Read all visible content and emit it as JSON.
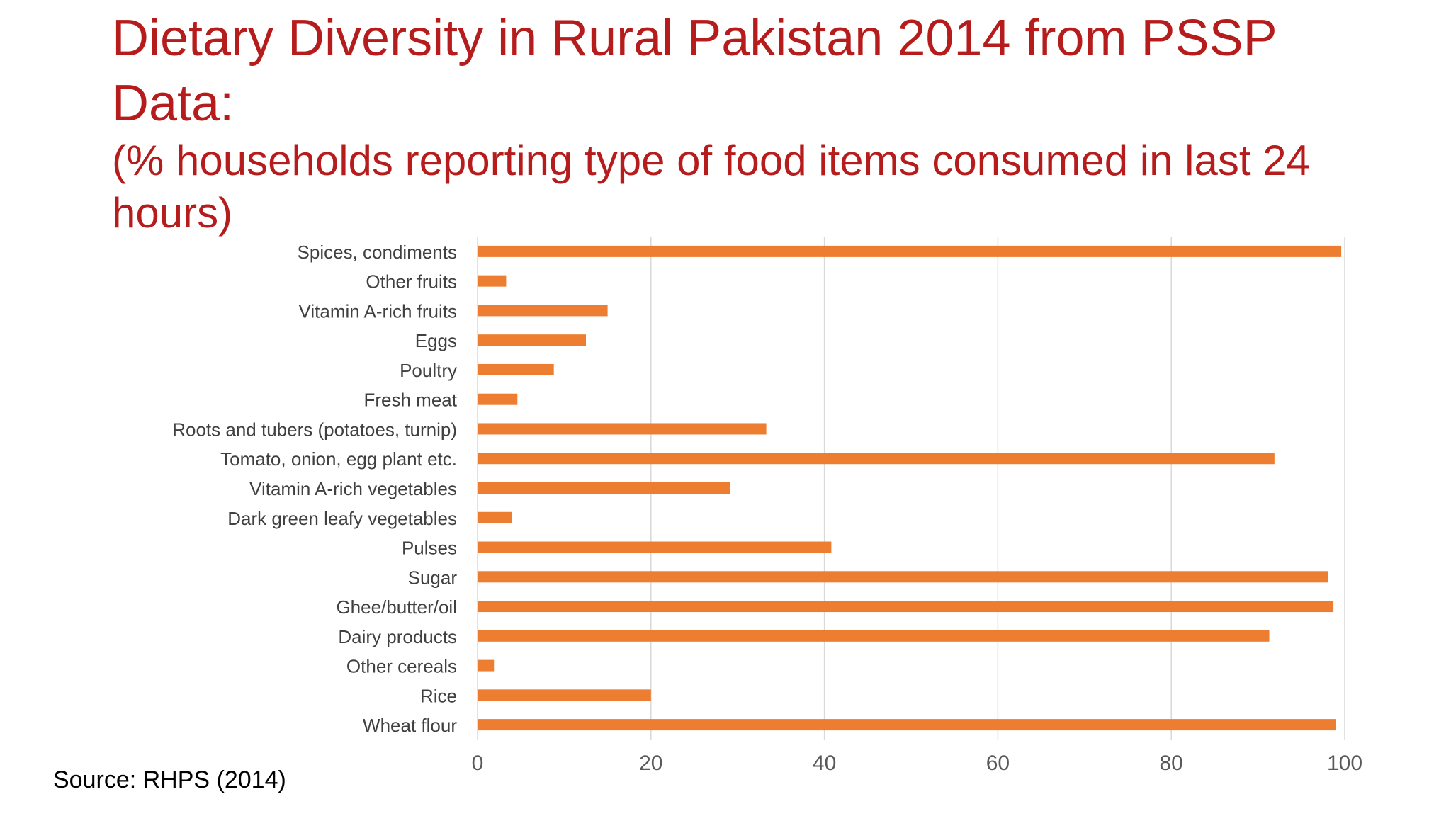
{
  "slide": {
    "title": "Dietary Diversity in Rural Pakistan 2014 from PSSP Data:",
    "subtitle": "(% households reporting type of food items consumed in last 24 hours)",
    "source": "Source: RHPS (2014)"
  },
  "colors": {
    "title": "#b71c1c",
    "bar": "#ED7D31",
    "grid": "#d9d9d9",
    "label": "#404040"
  },
  "chart_data": {
    "type": "bar",
    "orientation": "horizontal",
    "categories": [
      "Spices, condiments",
      "Other fruits",
      "Vitamin A-rich fruits",
      "Eggs",
      "Poultry",
      "Fresh meat",
      "Roots and tubers (potatoes, turnip)",
      "Tomato, onion, egg plant etc.",
      "Vitamin A-rich vegetables",
      "Dark green leafy vegetables",
      "Pulses",
      "Sugar",
      "Ghee/butter/oil",
      "Dairy products",
      "Other cereals",
      "Rice",
      "Wheat flour"
    ],
    "values": [
      99.6,
      3.3,
      15.0,
      12.5,
      8.8,
      4.6,
      33.3,
      91.9,
      29.1,
      4.0,
      40.8,
      98.1,
      98.7,
      91.3,
      1.9,
      20.0,
      99.0
    ],
    "xlim": [
      0,
      100
    ],
    "xticks": [
      0,
      20,
      40,
      60,
      80,
      100
    ],
    "grid": true,
    "legend": false
  }
}
